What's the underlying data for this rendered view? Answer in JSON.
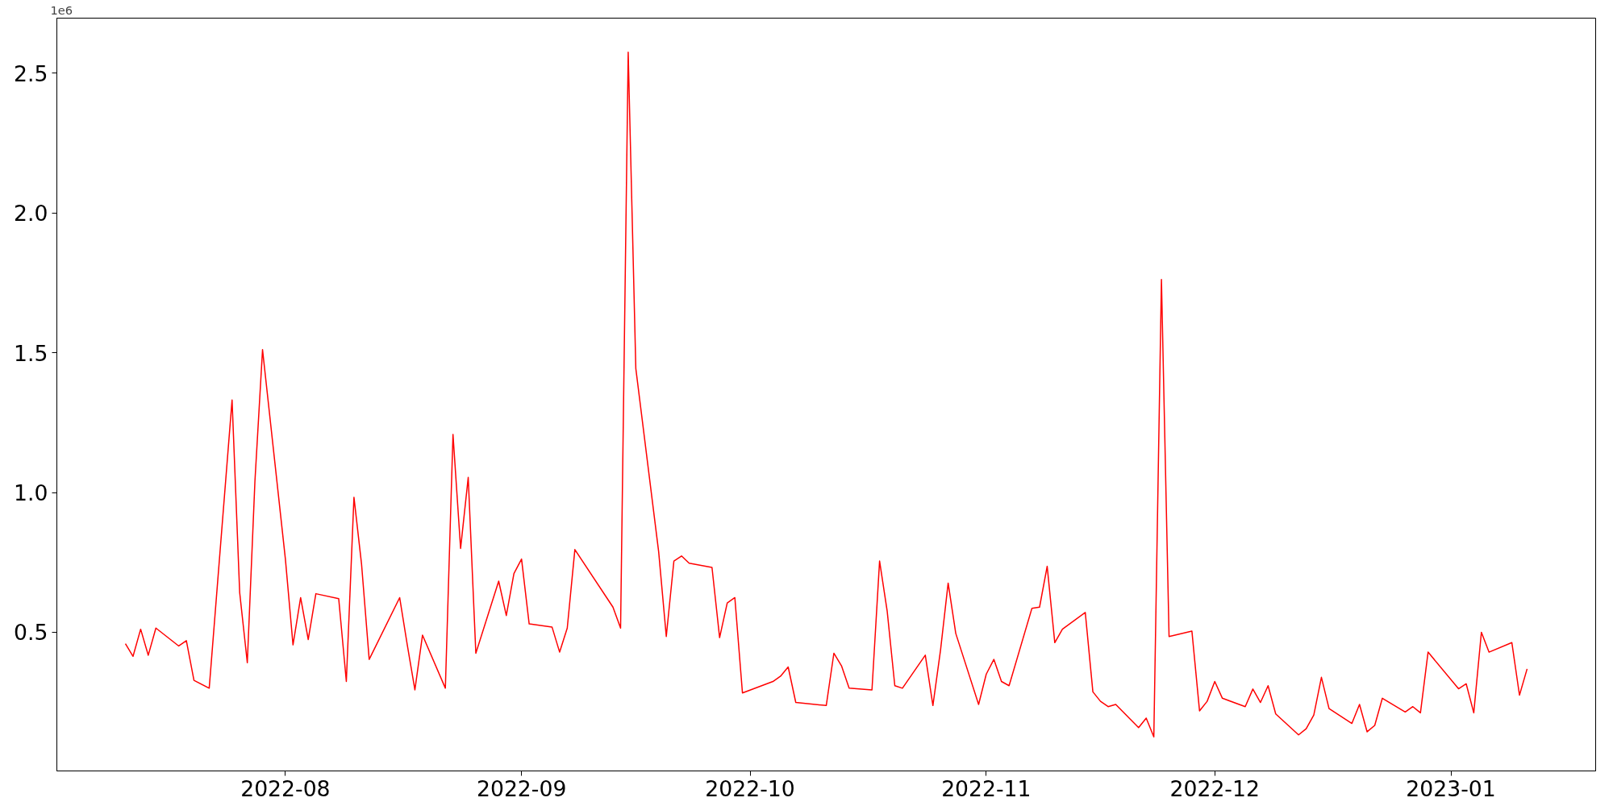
{
  "chart_data": {
    "type": "line",
    "x": [
      "2022-07-11",
      "2022-07-12",
      "2022-07-13",
      "2022-07-14",
      "2022-07-15",
      "2022-07-18",
      "2022-07-19",
      "2022-07-20",
      "2022-07-22",
      "2022-07-25",
      "2022-07-26",
      "2022-07-27",
      "2022-07-28",
      "2022-07-29",
      "2022-08-01",
      "2022-08-02",
      "2022-08-03",
      "2022-08-04",
      "2022-08-05",
      "2022-08-08",
      "2022-08-09",
      "2022-08-10",
      "2022-08-11",
      "2022-08-12",
      "2022-08-16",
      "2022-08-17",
      "2022-08-18",
      "2022-08-19",
      "2022-08-22",
      "2022-08-23",
      "2022-08-24",
      "2022-08-25",
      "2022-08-26",
      "2022-08-29",
      "2022-08-30",
      "2022-08-31",
      "2022-09-01",
      "2022-09-02",
      "2022-09-05",
      "2022-09-06",
      "2022-09-07",
      "2022-09-08",
      "2022-09-13",
      "2022-09-14",
      "2022-09-15",
      "2022-09-16",
      "2022-09-19",
      "2022-09-20",
      "2022-09-21",
      "2022-09-22",
      "2022-09-23",
      "2022-09-26",
      "2022-09-27",
      "2022-09-28",
      "2022-09-29",
      "2022-09-30",
      "2022-10-04",
      "2022-10-05",
      "2022-10-06",
      "2022-10-07",
      "2022-10-11",
      "2022-10-12",
      "2022-10-13",
      "2022-10-14",
      "2022-10-17",
      "2022-10-18",
      "2022-10-19",
      "2022-10-20",
      "2022-10-21",
      "2022-10-24",
      "2022-10-25",
      "2022-10-26",
      "2022-10-27",
      "2022-10-28",
      "2022-10-31",
      "2022-11-01",
      "2022-11-02",
      "2022-11-03",
      "2022-11-04",
      "2022-11-07",
      "2022-11-08",
      "2022-11-09",
      "2022-11-10",
      "2022-11-11",
      "2022-11-14",
      "2022-11-15",
      "2022-11-16",
      "2022-11-17",
      "2022-11-18",
      "2022-11-21",
      "2022-11-22",
      "2022-11-23",
      "2022-11-24",
      "2022-11-25",
      "2022-11-28",
      "2022-11-29",
      "2022-11-30",
      "2022-12-01",
      "2022-12-02",
      "2022-12-05",
      "2022-12-06",
      "2022-12-07",
      "2022-12-08",
      "2022-12-09",
      "2022-12-12",
      "2022-12-13",
      "2022-12-14",
      "2022-12-15",
      "2022-12-16",
      "2022-12-19",
      "2022-12-20",
      "2022-12-21",
      "2022-12-22",
      "2022-12-23",
      "2022-12-26",
      "2022-12-27",
      "2022-12-28",
      "2022-12-29",
      "2023-01-02",
      "2023-01-03",
      "2023-01-04",
      "2023-01-05",
      "2023-01-06",
      "2023-01-09",
      "2023-01-10",
      "2023-01-11"
    ],
    "series": [
      {
        "color": "#ff0000",
        "values": [
          0.459,
          0.414,
          0.511,
          0.418,
          0.515,
          0.451,
          0.47,
          0.328,
          0.3,
          1.331,
          0.642,
          0.391,
          1.04,
          1.511,
          0.762,
          0.455,
          0.624,
          0.474,
          0.638,
          0.62,
          0.324,
          0.983,
          0.743,
          0.403,
          0.624,
          0.455,
          0.294,
          0.49,
          0.3,
          1.208,
          0.8,
          1.054,
          0.425,
          0.683,
          0.56,
          0.71,
          0.762,
          0.53,
          0.519,
          0.429,
          0.515,
          0.796,
          0.59,
          0.515,
          2.575,
          1.444,
          0.788,
          0.485,
          0.755,
          0.773,
          0.747,
          0.732,
          0.481,
          0.605,
          0.624,
          0.283,
          0.324,
          0.343,
          0.376,
          0.249,
          0.238,
          0.425,
          0.38,
          0.3,
          0.294,
          0.755,
          0.575,
          0.309,
          0.3,
          0.418,
          0.238,
          0.436,
          0.676,
          0.496,
          0.242,
          0.35,
          0.403,
          0.324,
          0.309,
          0.586,
          0.59,
          0.736,
          0.463,
          0.511,
          0.571,
          0.287,
          0.253,
          0.234,
          0.242,
          0.159,
          0.193,
          0.126,
          1.762,
          0.485,
          0.504,
          0.219,
          0.253,
          0.324,
          0.264,
          0.234,
          0.297,
          0.249,
          0.309,
          0.208,
          0.133,
          0.155,
          0.204,
          0.339,
          0.227,
          0.174,
          0.242,
          0.144,
          0.167,
          0.264,
          0.215,
          0.234,
          0.212,
          0.429,
          0.298,
          0.316,
          0.212,
          0.5,
          0.429,
          0.463,
          0.275,
          0.369
        ]
      }
    ],
    "xlim": [
      "2022-07-02",
      "2023-01-20"
    ],
    "xticks": [
      {
        "value": "2022-08-01",
        "label": "2022-08"
      },
      {
        "value": "2022-09-01",
        "label": "2022-09"
      },
      {
        "value": "2022-10-01",
        "label": "2022-10"
      },
      {
        "value": "2022-11-01",
        "label": "2022-11"
      },
      {
        "value": "2022-12-01",
        "label": "2022-12"
      },
      {
        "value": "2023-01-01",
        "label": "2023-01"
      }
    ],
    "ylim": [
      0.004,
      2.697
    ],
    "yticks": [
      0.5,
      {
        "value": 1,
        "label": "1.0"
      },
      1.5,
      {
        "value": 2,
        "label": "2.0"
      },
      2.5
    ],
    "annotations": [
      "1e6"
    ],
    "grid": false,
    "marker": "none",
    "line_style": "solid"
  }
}
